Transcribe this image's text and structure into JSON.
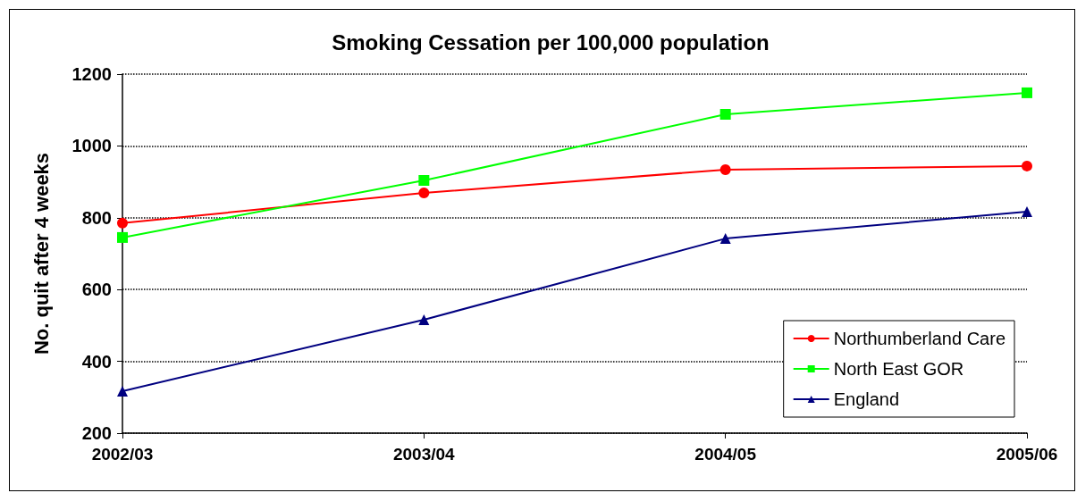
{
  "chart_data": {
    "type": "line",
    "title": "Smoking Cessation per 100,000 population",
    "ylabel": "No. quit after 4 weeks",
    "categories": [
      "2002/03",
      "2003/04",
      "2004/05",
      "2005/06"
    ],
    "series": [
      {
        "name": "Northumberland Care",
        "color": "#ff0000",
        "marker": "circle",
        "values": [
          785,
          869,
          934,
          944
        ]
      },
      {
        "name": "North East GOR",
        "color": "#00ff00",
        "marker": "square",
        "values": [
          745,
          904,
          1088,
          1148
        ]
      },
      {
        "name": "England",
        "color": "#000080",
        "marker": "triangle",
        "values": [
          317,
          516,
          742,
          817
        ]
      }
    ],
    "ylim": [
      200,
      1200
    ],
    "yticks": [
      200,
      400,
      600,
      800,
      1000,
      1200
    ],
    "grid": "y",
    "legend": "bottom right"
  }
}
